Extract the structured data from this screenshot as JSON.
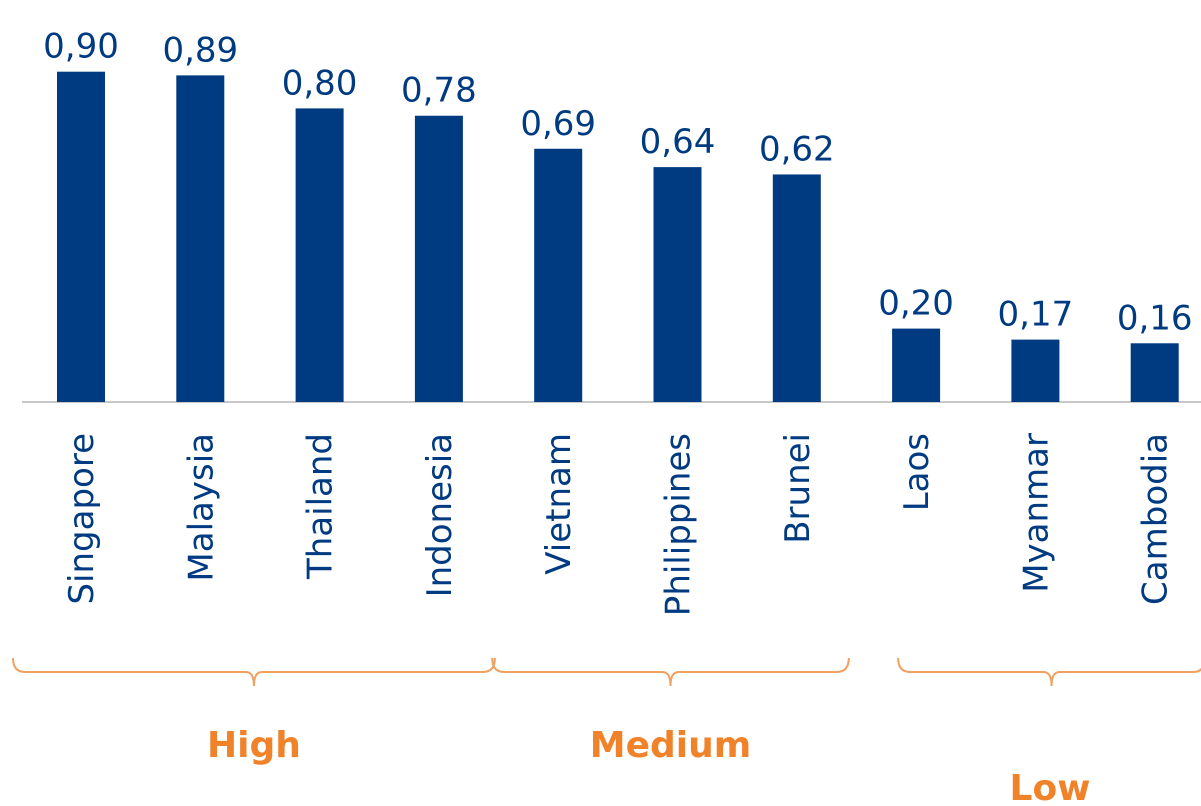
{
  "chart_data": {
    "type": "bar",
    "categories": [
      "Singapore",
      "Malaysia",
      "Thailand",
      "Indonesia",
      "Vietnam",
      "Philippines",
      "Brunei",
      "Laos",
      "Myanmar",
      "Cambodia"
    ],
    "values": [
      0.9,
      0.89,
      0.8,
      0.78,
      0.69,
      0.64,
      0.62,
      0.2,
      0.17,
      0.16
    ],
    "value_labels": [
      "0,90",
      "0,89",
      "0,80",
      "0,78",
      "0,69",
      "0,64",
      "0,62",
      "0,20",
      "0,17",
      "0,16"
    ],
    "ylim": [
      0,
      1
    ],
    "grid": false,
    "legend": "none",
    "groups": [
      {
        "label": "High",
        "members": [
          "Singapore",
          "Malaysia",
          "Thailand",
          "Indonesia"
        ]
      },
      {
        "label": "Medium",
        "members": [
          "Vietnam",
          "Philippines",
          "Brunei"
        ]
      },
      {
        "label": "Low",
        "members": [
          "Laos",
          "Myanmar",
          "Cambodia"
        ]
      }
    ]
  },
  "colors": {
    "bar": "#003a80",
    "group_label": "#f0822a",
    "bracket": "#f0a060",
    "axis": "#c8c8c8"
  }
}
